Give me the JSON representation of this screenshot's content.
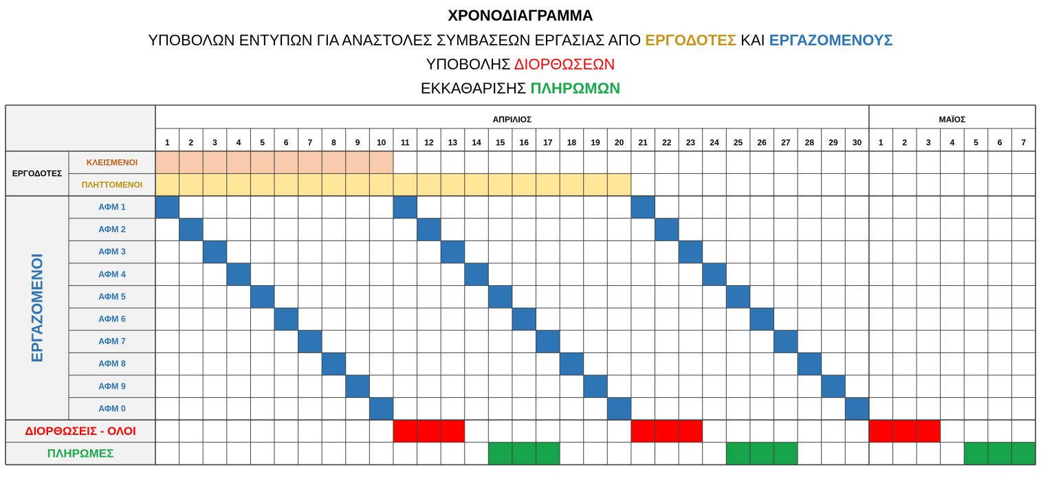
{
  "title": {
    "line1": "ΧΡΟΝΟΔΙΑΓΡΑΜΜΑ",
    "line2_a": "ΥΠΟΒΟΛΩΝ ΕΝΤΥΠΩΝ ΓΙΑ ΑΝΑΣΤΟΛΕΣ ΣΥΜΒΑΣΕΩΝ ΕΡΓΑΣΙΑΣ ΑΠΟ ",
    "line2_b": "ΕΡΓΟΔΟΤΕΣ",
    "line2_c": " ΚΑΙ ",
    "line2_d": "ΕΡΓΑΖΟΜΕΝΟΥΣ",
    "line3_a": "ΥΠΟΒΟΛΗΣ ",
    "line3_b": "ΔΙΟΡΘΩΣΕΩΝ",
    "line4_a": "ΕΚΚΑΘΑΡΙΣΗΣ ",
    "line4_b": "ΠΛΗΡΩΜΩΝ"
  },
  "months": [
    {
      "label": "ΑΠΡΙΛΙΟΣ",
      "days": [
        1,
        2,
        3,
        4,
        5,
        6,
        7,
        8,
        9,
        10,
        11,
        12,
        13,
        14,
        15,
        16,
        17,
        18,
        19,
        20,
        21,
        22,
        23,
        24,
        25,
        26,
        27,
        28,
        29,
        30
      ]
    },
    {
      "label": "ΜΑΪΟΣ",
      "days": [
        1,
        2,
        3,
        4,
        5,
        6,
        7
      ]
    }
  ],
  "employers": {
    "group_label": "ΕΡΓΟΔΟΤΕΣ",
    "rows": [
      {
        "label": "ΚΛΕΙΣΜΕΝΟΙ",
        "label_color": "#c55a11",
        "fill_color": "#f8cbad",
        "filled_columns": [
          1,
          2,
          3,
          4,
          5,
          6,
          7,
          8,
          9,
          10
        ]
      },
      {
        "label": "ΠΛΗΤΤΟΜΕΝΟΙ",
        "label_color": "#bf9000",
        "fill_color": "#ffe699",
        "filled_columns": [
          1,
          2,
          3,
          4,
          5,
          6,
          7,
          8,
          9,
          10,
          11,
          12,
          13,
          14,
          15,
          16,
          17,
          18,
          19,
          20
        ]
      }
    ]
  },
  "employees": {
    "group_label": "ΕΡΓΑΖΟΜΕΝΟΙ",
    "label_color": "#2e75b6",
    "fill_color": "#2e75b6",
    "rows": [
      {
        "label": "ΑΦΜ 1",
        "filled_columns": [
          1,
          11,
          21
        ]
      },
      {
        "label": "ΑΦΜ 2",
        "filled_columns": [
          2,
          12,
          22
        ]
      },
      {
        "label": "ΑΦΜ 3",
        "filled_columns": [
          3,
          13,
          23
        ]
      },
      {
        "label": "ΑΦΜ 4",
        "filled_columns": [
          4,
          14,
          24
        ]
      },
      {
        "label": "ΑΦΜ 5",
        "filled_columns": [
          5,
          15,
          25
        ]
      },
      {
        "label": "ΑΦΜ 6",
        "filled_columns": [
          6,
          16,
          26
        ]
      },
      {
        "label": "ΑΦΜ 7",
        "filled_columns": [
          7,
          17,
          27
        ]
      },
      {
        "label": "ΑΦΜ 8",
        "filled_columns": [
          8,
          18,
          28
        ]
      },
      {
        "label": "ΑΦΜ 9",
        "filled_columns": [
          9,
          19,
          29
        ]
      },
      {
        "label": "ΑΦΜ 0",
        "filled_columns": [
          10,
          20,
          30
        ]
      }
    ]
  },
  "corrections": {
    "label": "ΔΙΟΡΘΩΣΕΙΣ - ΟΛΟΙ",
    "label_color": "#ff0000",
    "fill_color": "#ff0000",
    "filled_columns": [
      11,
      12,
      13,
      21,
      22,
      23,
      31,
      32,
      33
    ]
  },
  "payments": {
    "label": "ΠΛΗΡΩΜΕΣ",
    "label_color": "#19a84a",
    "fill_color": "#16a349",
    "filled_columns": [
      15,
      16,
      17,
      25,
      26,
      27,
      35,
      36,
      37
    ]
  },
  "colors": {
    "grid": "#404040",
    "header_bg": "#f2f2f2",
    "label_bg": "#f2f2f2"
  }
}
